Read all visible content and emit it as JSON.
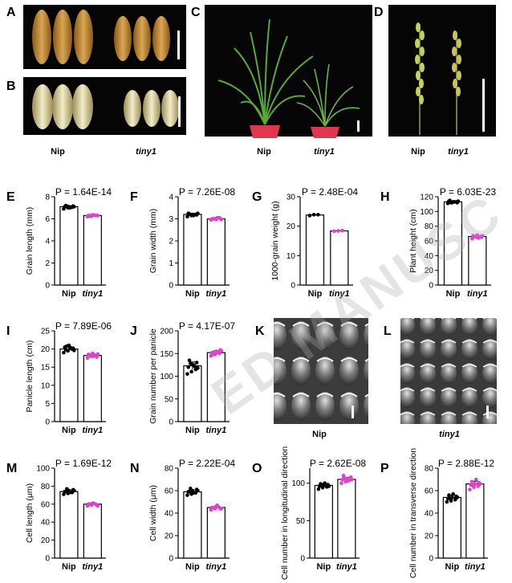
{
  "panel_letters": [
    "A",
    "B",
    "C",
    "D",
    "E",
    "F",
    "G",
    "H",
    "I",
    "J",
    "K",
    "L",
    "M",
    "N",
    "O",
    "P"
  ],
  "photo_captions": {
    "ab": {
      "wt": "Nip",
      "mut": "tiny1"
    },
    "c": {
      "wt": "Nip",
      "mut": "tiny1"
    },
    "d": {
      "wt": "Nip",
      "mut": "tiny1"
    },
    "k": "Nip",
    "l": "tiny1"
  },
  "watermark": "ED MANUSC",
  "colors": {
    "wt": "#000000",
    "mutant": "#e040d0",
    "photo_bg": "#050505"
  },
  "chart_data": [
    {
      "panel": "E",
      "type": "bar",
      "p_value": "P = 1.64E-14",
      "ylabel": "Grain length (mm)",
      "categories": [
        "Nip",
        "tiny1"
      ],
      "values": [
        7.1,
        6.3
      ],
      "ylim": [
        0,
        8
      ],
      "yticks": [
        0,
        2,
        4,
        6,
        8
      ],
      "points": [
        [
          6.9,
          7.0,
          7.05,
          7.1,
          7.1,
          7.15,
          7.2,
          7.0,
          7.1,
          7.15
        ],
        [
          6.2,
          6.25,
          6.3,
          6.3,
          6.35,
          6.3,
          6.25,
          6.35,
          6.3,
          6.3
        ]
      ]
    },
    {
      "panel": "F",
      "type": "bar",
      "p_value": "P = 7.26E-08",
      "ylabel": "Grain width (mm)",
      "categories": [
        "Nip",
        "tiny1"
      ],
      "values": [
        3.2,
        3.0
      ],
      "ylim": [
        0,
        4
      ],
      "yticks": [
        0,
        1,
        2,
        3,
        4
      ],
      "points": [
        [
          3.1,
          3.15,
          3.2,
          3.25,
          3.2,
          3.18,
          3.22,
          3.15,
          3.25,
          3.2
        ],
        [
          2.95,
          3.0,
          3.05,
          3.0,
          2.98,
          3.02,
          3.0,
          3.05,
          2.97,
          3.0
        ]
      ]
    },
    {
      "panel": "G",
      "type": "bar",
      "p_value": "P = 2.48E-04",
      "ylabel": "1000-grain weight (g)",
      "categories": [
        "Nip",
        "tiny1"
      ],
      "values": [
        23.8,
        18.4
      ],
      "ylim": [
        0,
        30
      ],
      "yticks": [
        0,
        10,
        20,
        30
      ],
      "points": [
        [
          23.6,
          23.9,
          23.9
        ],
        [
          18.3,
          18.4,
          18.5
        ]
      ]
    },
    {
      "panel": "H",
      "type": "bar",
      "p_value": "P = 6.03E-23",
      "ylabel": "Plant height (cm)",
      "categories": [
        "Nip",
        "tiny1"
      ],
      "values": [
        113,
        66
      ],
      "ylim": [
        0,
        120
      ],
      "yticks": [
        0,
        20,
        40,
        60,
        80,
        100,
        120
      ],
      "points": [
        [
          111,
          112,
          113,
          114,
          113,
          112,
          115,
          113,
          114,
          112
        ],
        [
          63,
          65,
          66,
          67,
          68,
          65,
          66,
          64,
          67,
          66
        ]
      ]
    },
    {
      "panel": "I",
      "type": "bar",
      "p_value": "P = 7.89E-06",
      "ylabel": "Panicle length (cm)",
      "categories": [
        "Nip",
        "tiny1"
      ],
      "values": [
        20.0,
        18.2
      ],
      "ylim": [
        0,
        25
      ],
      "yticks": [
        0,
        5,
        10,
        15,
        20,
        25
      ],
      "points": [
        [
          19.0,
          19.5,
          20.0,
          20.5,
          21.0,
          20.2,
          19.8,
          20.5,
          19.6,
          20.8,
          20.1
        ],
        [
          17.5,
          18.0,
          18.2,
          18.5,
          18.8,
          17.8,
          18.4,
          18.0,
          18.6,
          18.1,
          18.3
        ]
      ]
    },
    {
      "panel": "J",
      "type": "bar",
      "p_value": "P = 4.17E-07",
      "ylabel": "Grain number per panicle",
      "categories": [
        "Nip",
        "tiny1"
      ],
      "values": [
        123,
        152
      ],
      "ylim": [
        0,
        200
      ],
      "yticks": [
        0,
        50,
        100,
        150,
        200
      ],
      "points": [
        [
          105,
          110,
          115,
          120,
          125,
          130,
          135,
          125,
          118,
          128,
          122
        ],
        [
          145,
          148,
          150,
          152,
          155,
          158,
          150,
          153,
          156,
          149,
          154
        ]
      ]
    },
    {
      "panel": "M",
      "type": "bar",
      "p_value": "P = 1.69E-12",
      "ylabel": "Cell length (μm)",
      "categories": [
        "Nip",
        "tiny1"
      ],
      "values": [
        74,
        60
      ],
      "ylim": [
        0,
        100
      ],
      "yticks": [
        0,
        20,
        40,
        60,
        80,
        100
      ],
      "points": [
        [
          71,
          72,
          73,
          74,
          75,
          76,
          74,
          73,
          75,
          77
        ],
        [
          58,
          59,
          60,
          60,
          61,
          59,
          60,
          61,
          58,
          60
        ]
      ]
    },
    {
      "panel": "N",
      "type": "bar",
      "p_value": "P = 2.22E-04",
      "ylabel": "Cell width (μm)",
      "categories": [
        "Nip",
        "tiny1"
      ],
      "values": [
        59,
        45
      ],
      "ylim": [
        0,
        80
      ],
      "yticks": [
        0,
        20,
        40,
        60,
        80
      ],
      "points": [
        [
          56,
          57,
          58,
          59,
          60,
          61,
          59,
          58,
          60,
          62
        ],
        [
          43,
          44,
          45,
          45,
          46,
          44,
          45,
          47,
          44,
          45
        ]
      ]
    },
    {
      "panel": "O",
      "type": "bar",
      "p_value": "P = 2.62E-08",
      "ylabel": "Cell number in longitudinal direction",
      "categories": [
        "Nip",
        "tiny1"
      ],
      "values": [
        97,
        105
      ],
      "ylim": [
        0,
        120
      ],
      "yticks": [
        0,
        50,
        100
      ],
      "points": [
        [
          92,
          94,
          95,
          96,
          97,
          98,
          99,
          100,
          96,
          98
        ],
        [
          100,
          102,
          104,
          105,
          106,
          108,
          110,
          103,
          105,
          107
        ]
      ]
    },
    {
      "panel": "P",
      "type": "bar",
      "p_value": "P = 2.88E-12",
      "ylabel": "Cell number in transverse direction",
      "categories": [
        "Nip",
        "tiny1"
      ],
      "values": [
        54,
        66
      ],
      "ylim": [
        0,
        80
      ],
      "yticks": [
        0,
        20,
        40,
        60,
        80
      ],
      "points": [
        [
          50,
          51,
          52,
          53,
          54,
          55,
          56,
          57,
          54,
          53
        ],
        [
          61,
          63,
          64,
          65,
          66,
          67,
          68,
          70,
          66,
          65
        ]
      ]
    }
  ]
}
